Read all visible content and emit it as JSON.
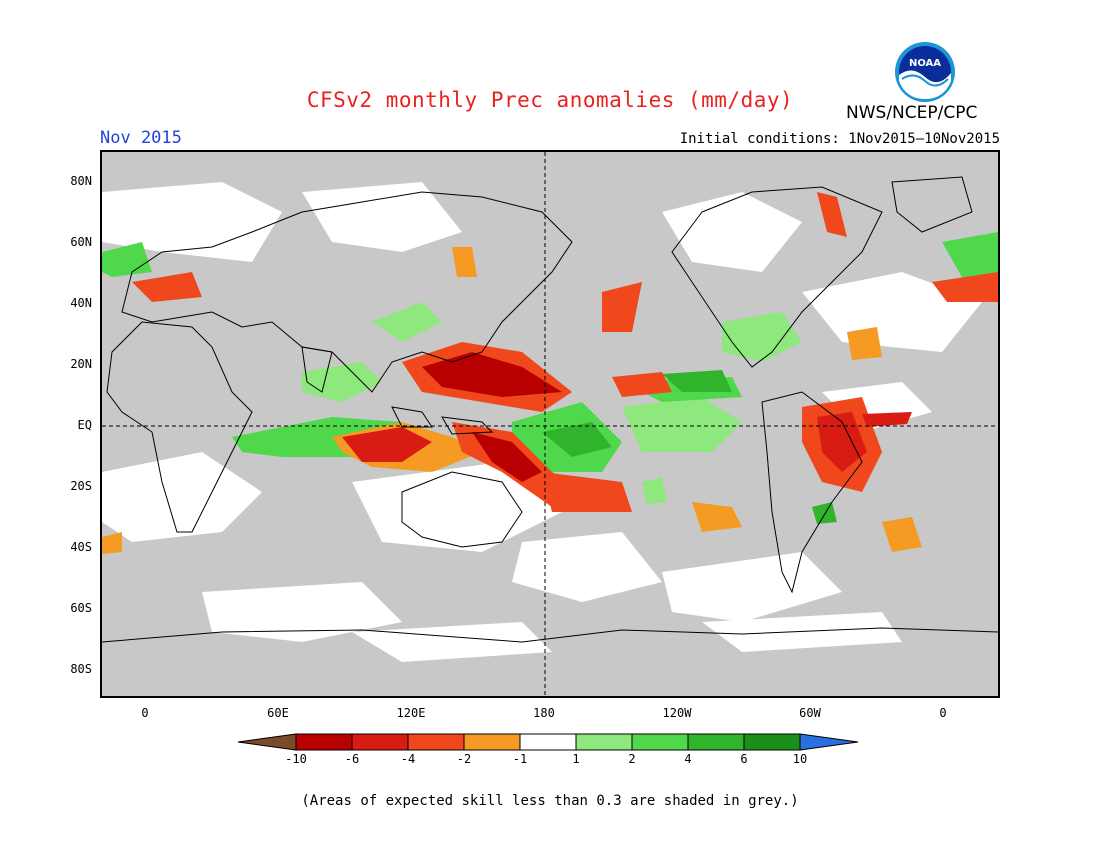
{
  "title": "CFSv2 monthly Prec anomalies (mm/day)",
  "agency": "NWS/NCEP/CPC",
  "logo_text": "NOAA",
  "month": "Nov 2015",
  "initial_conditions": "Initial conditions: 1Nov2015—10Nov2015",
  "lat_labels": [
    "80N",
    "60N",
    "40N",
    "20N",
    "EQ",
    "20S",
    "40S",
    "60S",
    "80S"
  ],
  "lon_labels": [
    "0",
    "60E",
    "120E",
    "180",
    "120W",
    "60W",
    "0"
  ],
  "colorbar": {
    "values": [
      "-10",
      "-6",
      "-4",
      "-2",
      "-1",
      "1",
      "2",
      "4",
      "6",
      "10"
    ],
    "colors": [
      "#7a4a2a",
      "#b80000",
      "#d81c14",
      "#f0471c",
      "#f59a22",
      "#ffffff",
      "#8ee87e",
      "#4fd84b",
      "#2fb42b",
      "#1a8f1a",
      "#2a6fe0"
    ]
  },
  "note": "(Areas of expected skill less than 0.3 are shaded in grey.)",
  "colors": {
    "title": "#e8221f",
    "month": "#2343d6",
    "skill_grey": "#c8c8c8"
  }
}
